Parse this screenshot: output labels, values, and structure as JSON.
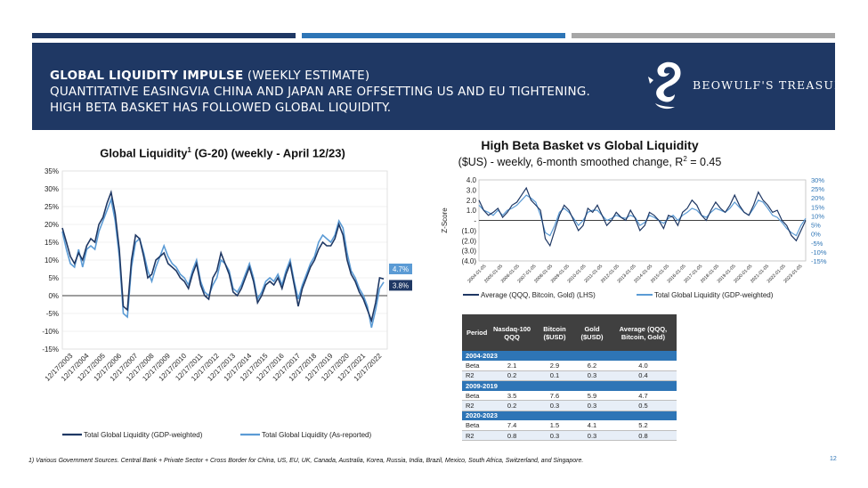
{
  "header": {
    "title_bold": "GLOBAL LIQUIDITY IMPULSE",
    "title_rest": " (WEEKLY ESTIMATE)",
    "subtitle": "QUANTITATIVE EASINGVIA CHINA AND JAPAN ARE OFFSETTING US AND EU TIGHTENING. HIGH BETA BASKET HAS FOLLOWED GLOBAL LIQUIDITY.",
    "logo_text": "BEOWULF'S TREASURY"
  },
  "colors": {
    "navy": "#1f3864",
    "blue": "#2e75b6",
    "lightblue": "#5b9bd5",
    "gray": "#a6a6a6",
    "grid": "#d9d9d9"
  },
  "chart_data": [
    {
      "type": "line",
      "title": "Global Liquidity",
      "title_sup": "1",
      "title_rest": " (G-20) (weekly - April 12/23)",
      "ylim": [
        -15,
        35
      ],
      "y_ticks": [
        "35%",
        "30%",
        "25%",
        "20%",
        "15%",
        "10%",
        "5%",
        "0%",
        "-5%",
        "-10%",
        "-15%"
      ],
      "x_ticks": [
        "12/17/2003",
        "12/17/2004",
        "12/17/2005",
        "12/17/2006",
        "12/17/2007",
        "12/17/2008",
        "12/17/2009",
        "12/17/2010",
        "12/17/2011",
        "12/17/2012",
        "12/17/2013",
        "12/17/2014",
        "12/17/2015",
        "12/17/2016",
        "12/17/2017",
        "12/17/2018",
        "12/17/2019",
        "12/17/2020",
        "12/17/2021",
        "12/17/2022"
      ],
      "end_labels": [
        "4.7%",
        "3.8%"
      ],
      "series": [
        {
          "name": "Total Global Liquidity (GDP-weighted)",
          "color": "#1f3864",
          "values": [
            19,
            15,
            11,
            9,
            12,
            10,
            14,
            16,
            15,
            20,
            22,
            26,
            29,
            23,
            13,
            -3,
            -4,
            10,
            17,
            16,
            11,
            5,
            6,
            10,
            11,
            12,
            9,
            8,
            7,
            5,
            4,
            2,
            6,
            9,
            3,
            0,
            -1,
            5,
            7,
            12,
            9,
            6,
            1,
            0,
            2,
            5,
            8,
            4,
            -2,
            0,
            3,
            4,
            3,
            5,
            2,
            6,
            9,
            3,
            -3,
            2,
            5,
            8,
            10,
            13,
            15,
            14,
            14,
            16,
            20,
            17,
            10,
            6,
            4,
            1,
            -1,
            -4,
            -7,
            -2,
            5,
            4.7
          ]
        },
        {
          "name": "Total Global Liquidity (As-reported)",
          "color": "#5b9bd5",
          "values": [
            18,
            13,
            9,
            8,
            13,
            8,
            13,
            14,
            13,
            18,
            21,
            24,
            27,
            21,
            11,
            -5,
            -6,
            8,
            15,
            16,
            12,
            7,
            4,
            8,
            11,
            14,
            11,
            9,
            8,
            6,
            5,
            3,
            7,
            10,
            4,
            1,
            0,
            3,
            5,
            10,
            9,
            7,
            2,
            1,
            3,
            6,
            9,
            5,
            -1,
            1,
            4,
            5,
            4,
            6,
            3,
            7,
            10,
            4,
            -1,
            3,
            6,
            9,
            11,
            15,
            17,
            16,
            15,
            17,
            21,
            19,
            12,
            7,
            5,
            2,
            0,
            -3,
            -9,
            -4,
            2,
            3.8
          ]
        }
      ]
    },
    {
      "type": "line",
      "title": "High Beta Basket vs Global Liquidity",
      "subtitle": "($US) - weekly, 6-month smoothed change, R",
      "subtitle_sup": "2",
      "subtitle_rest": " = 0.45",
      "ylabel": "Z-Score",
      "ylim_left": [
        -4,
        4
      ],
      "ylim_right": [
        -15,
        30
      ],
      "left_ticks": [
        "4.0",
        "3.0",
        "2.0",
        "1.0",
        "-",
        "(1.0)",
        "(2.0)",
        "(3.0)",
        "(4.0)"
      ],
      "right_ticks": [
        "30%",
        "25%",
        "20%",
        "15%",
        "10%",
        "5%",
        "0%",
        "-5%",
        "-10%",
        "-15%"
      ],
      "x_ticks": [
        "2004-01-05",
        "2005-01-05",
        "2006-01-05",
        "2007-01-05",
        "2008-01-05",
        "2009-01-05",
        "2010-01-05",
        "2011-01-05",
        "2012-01-05",
        "2013-01-05",
        "2014-01-05",
        "2015-01-05",
        "2016-01-05",
        "2017-01-05",
        "2018-01-05",
        "2019-01-05",
        "2020-01-05",
        "2021-01-05",
        "2022-01-05",
        "2023-01-05"
      ],
      "series": [
        {
          "name": "Average (QQQ, Bitcoin, Gold) (LHS)",
          "color": "#1f3864",
          "values": [
            2,
            1,
            0.5,
            0.8,
            1.2,
            0.3,
            0.8,
            1.5,
            1.8,
            2.5,
            3.2,
            2.0,
            1.5,
            1.0,
            -1.8,
            -2.5,
            -1.0,
            0.5,
            1.5,
            1.0,
            0,
            -1.0,
            -0.5,
            1.2,
            0.8,
            1.5,
            0.5,
            -0.5,
            0,
            0.8,
            0.3,
            0,
            1.0,
            0.2,
            -1.0,
            -0.5,
            0.8,
            0.5,
            0,
            -0.8,
            0.5,
            0.3,
            -0.5,
            0.8,
            1.2,
            2.0,
            1.5,
            0.5,
            0,
            1.0,
            1.8,
            1.2,
            0.8,
            1.5,
            2.5,
            1.5,
            0.8,
            0.5,
            1.5,
            2.8,
            2.0,
            1.5,
            0.8,
            1.0,
            0,
            -0.5,
            -1.5,
            -2.0,
            -1.0,
            0
          ]
        },
        {
          "name": "Total Global Liquidity (GDP-weighted)",
          "color": "#5b9bd5",
          "values": [
            1.5,
            1.0,
            0.8,
            0.5,
            1.0,
            0.5,
            1.0,
            1.2,
            1.5,
            2.0,
            2.5,
            2.2,
            1.8,
            0.5,
            -1.2,
            -1.5,
            -0.5,
            0.8,
            1.2,
            0.8,
            0.2,
            -0.5,
            0,
            0.8,
            1.0,
            1.0,
            0.5,
            0,
            0.2,
            0.5,
            0.3,
            0.2,
            0.5,
            0.3,
            -0.5,
            -0.2,
            0.5,
            0.3,
            0,
            -0.3,
            0.2,
            0.5,
            0,
            0.5,
            0.8,
            1.2,
            1.0,
            0.5,
            0.3,
            0.8,
            1.2,
            1.0,
            0.8,
            1.2,
            1.8,
            1.3,
            0.8,
            0.5,
            1.2,
            2.0,
            1.8,
            1.2,
            0.5,
            0.3,
            -0.2,
            -0.8,
            -1.2,
            -1.5,
            -0.5,
            0.2
          ]
        }
      ]
    }
  ],
  "table": {
    "headers": [
      "Period",
      "Nasdaq-100 QQQ",
      "Bitcoin ($USD)",
      "Gold ($USD)",
      "Average (QQQ, Bitcoin, Gold)"
    ],
    "groups": [
      {
        "label": "2004-2023",
        "rows": [
          [
            "Beta",
            "2.1",
            "2.9",
            "6.2",
            "4.0"
          ],
          [
            "R2",
            "0.2",
            "0.1",
            "0.3",
            "0.4"
          ]
        ]
      },
      {
        "label": "2009-2019",
        "rows": [
          [
            "Beta",
            "3.5",
            "7.6",
            "5.9",
            "4.7"
          ],
          [
            "R2",
            "0.2",
            "0.3",
            "0.3",
            "0.5"
          ]
        ]
      },
      {
        "label": "2020-2023",
        "rows": [
          [
            "Beta",
            "7.4",
            "1.5",
            "4.1",
            "5.2"
          ],
          [
            "R2",
            "0.8",
            "0.3",
            "0.3",
            "0.8"
          ]
        ]
      }
    ]
  },
  "footnote": "1) Various Government Sources. Central Bank + Private Sector + Cross Border for China, US, EU, UK, Canada, Australia, Korea, Russia, India, Brazil, Mexico, South Africa, Switzerland, and Singapore.",
  "page_number": "12"
}
